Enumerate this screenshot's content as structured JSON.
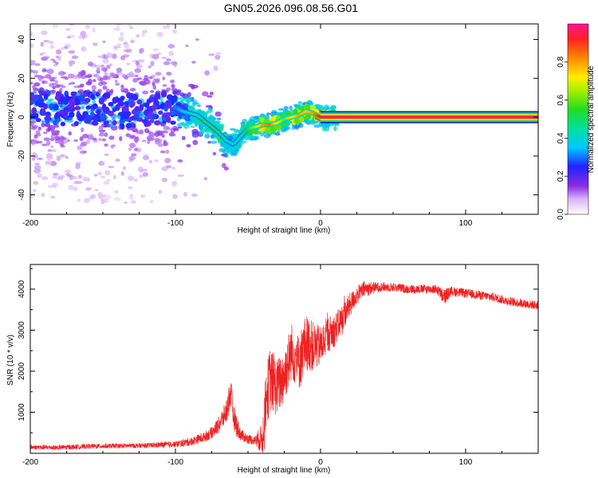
{
  "title": "GN05.2026.096.08.56.G01",
  "chart_data": [
    {
      "type": "heatmap",
      "title": "",
      "xlabel": "Height of straight line (km)",
      "ylabel": "Frequency (Hz)",
      "xlim": [
        -200,
        150
      ],
      "ylim": [
        -50,
        48
      ],
      "xticks": [
        -200,
        -100,
        0,
        100
      ],
      "xtick_labels": [
        "-200",
        "-100",
        "0",
        "100"
      ],
      "yticks": [
        -40,
        -20,
        0,
        20,
        40
      ],
      "ytick_labels": [
        "-40",
        "-20",
        "0",
        "20",
        "40"
      ],
      "ridge": {
        "x": [
          -200,
          -180,
          -160,
          -140,
          -120,
          -100,
          -95,
          -90,
          -85,
          -80,
          -75,
          -70,
          -65,
          -60,
          -55,
          -50,
          -45,
          -40,
          -35,
          -30,
          -25,
          -20,
          -15,
          -10,
          -5,
          0,
          10,
          50,
          100,
          150
        ],
        "y": [
          6,
          4,
          5,
          3,
          4,
          5,
          3,
          2,
          1,
          -2,
          -5,
          -8,
          -12,
          -14,
          -10,
          -6,
          -5,
          -4,
          -4,
          -3,
          -1,
          0,
          1,
          3,
          2,
          0,
          0,
          0,
          0,
          0
        ],
        "amplitude": [
          0.1,
          0.15,
          0.15,
          0.2,
          0.25,
          0.3,
          0.35,
          0.4,
          0.45,
          0.5,
          0.5,
          0.5,
          0.45,
          0.4,
          0.45,
          0.55,
          0.65,
          0.8,
          0.85,
          0.7,
          0.6,
          0.7,
          0.8,
          0.75,
          0.8,
          0.95,
          1.0,
          1.0,
          1.0,
          1.0
        ]
      },
      "colorbar": {
        "label": "Normalized spectral amplitude",
        "range": [
          0,
          1
        ],
        "ticks": [
          0.0,
          0.2,
          0.4,
          0.6,
          0.8
        ],
        "tick_labels": [
          "0.0",
          "0.2",
          "0.4",
          "0.6",
          "0.8"
        ]
      }
    },
    {
      "type": "line",
      "title": "",
      "xlabel": "Height of straight line (km)",
      "ylabel": "SNR (10 * v/v)",
      "xlim": [
        -200,
        150
      ],
      "ylim": [
        0,
        4600
      ],
      "xticks": [
        -200,
        -100,
        0,
        100
      ],
      "xtick_labels": [
        "-200",
        "-100",
        "0",
        "100"
      ],
      "yticks": [
        1000,
        2000,
        3000,
        4000
      ],
      "ytick_labels": [
        "1000",
        "2000",
        "3000",
        "4000"
      ],
      "series": [
        {
          "name": "SNR",
          "color": "#ee2222",
          "x": [
            -200,
            -180,
            -160,
            -140,
            -120,
            -100,
            -90,
            -80,
            -75,
            -70,
            -65,
            -62,
            -60,
            -57,
            -55,
            -50,
            -45,
            -40,
            -38,
            -35,
            -30,
            -25,
            -20,
            -15,
            -10,
            -5,
            0,
            5,
            10,
            15,
            20,
            25,
            30,
            40,
            50,
            60,
            70,
            80,
            85,
            90,
            100,
            110,
            120,
            130,
            140,
            150
          ],
          "y": [
            150,
            140,
            170,
            180,
            190,
            220,
            280,
            400,
            500,
            700,
            1000,
            1500,
            900,
            600,
            450,
            350,
            320,
            350,
            1200,
            1800,
            1600,
            1900,
            2500,
            2200,
            2700,
            2600,
            2600,
            2900,
            3000,
            3300,
            3600,
            3850,
            4000,
            4050,
            4050,
            4000,
            4000,
            4000,
            3800,
            3950,
            3900,
            3850,
            3800,
            3700,
            3650,
            3600
          ],
          "noise": [
            60,
            60,
            60,
            60,
            60,
            80,
            100,
            120,
            150,
            200,
            300,
            400,
            300,
            250,
            150,
            120,
            120,
            400,
            700,
            800,
            700,
            700,
            700,
            700,
            700,
            600,
            500,
            450,
            400,
            350,
            300,
            220,
            200,
            120,
            110,
            110,
            110,
            110,
            200,
            120,
            110,
            110,
            110,
            110,
            110,
            110
          ]
        }
      ]
    }
  ]
}
